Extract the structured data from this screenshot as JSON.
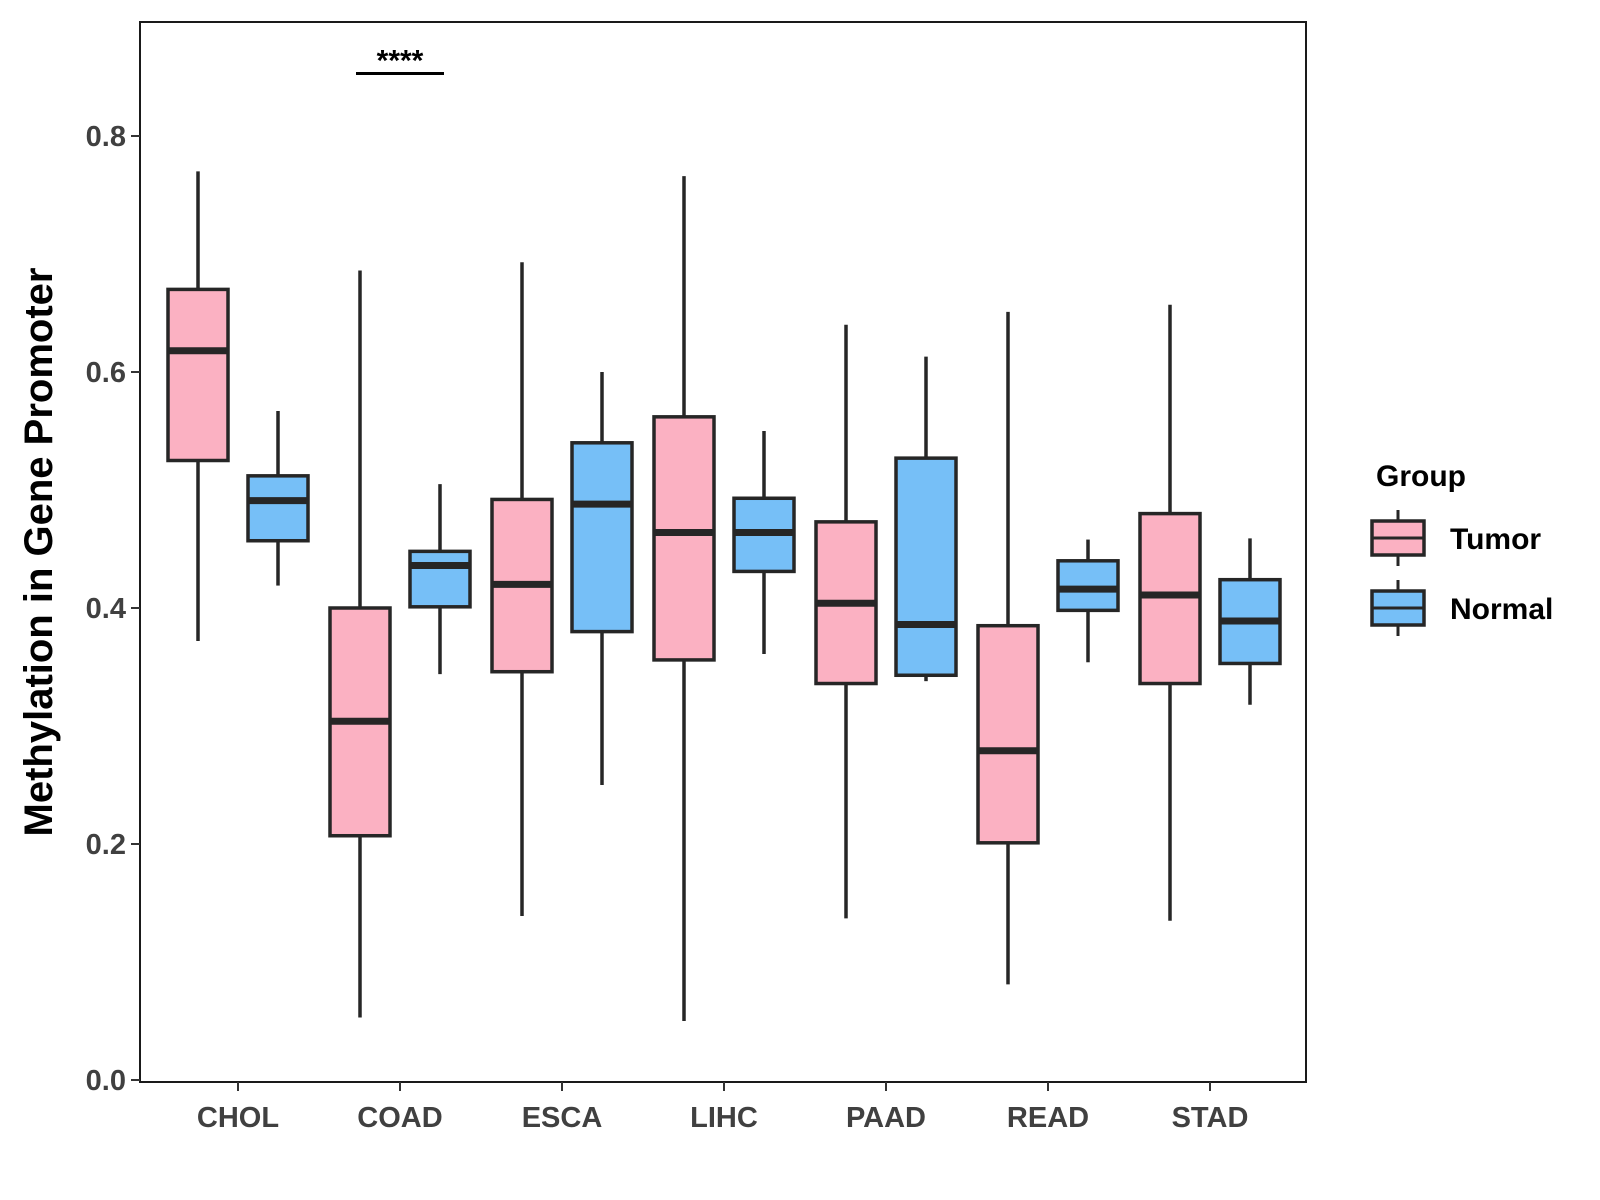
{
  "chart_data": {
    "type": "boxplot",
    "title": "",
    "xlabel": "",
    "ylabel": "Methylation in Gene Promoter",
    "ylim": [
      0,
      0.89
    ],
    "yticks": [
      0.0,
      0.2,
      0.4,
      0.6,
      0.8
    ],
    "ytick_labels": [
      "0.0",
      "0.2",
      "0.4",
      "0.6",
      "0.8"
    ],
    "categories": [
      "CHOL",
      "COAD",
      "ESCA",
      "LIHC",
      "PAAD",
      "READ",
      "STAD"
    ],
    "legend": {
      "title": "Group",
      "position": "right",
      "entries": [
        {
          "label": "Tumor",
          "color": "#FBB1C2"
        },
        {
          "label": "Normal",
          "color": "#76BFF7"
        }
      ]
    },
    "series": [
      {
        "name": "Tumor",
        "color": "#FBB1C2",
        "boxes": [
          {
            "category": "CHOL",
            "min": 0.372,
            "q1": 0.525,
            "median": 0.618,
            "q3": 0.67,
            "max": 0.77
          },
          {
            "category": "COAD",
            "min": 0.053,
            "q1": 0.207,
            "median": 0.304,
            "q3": 0.4,
            "max": 0.686
          },
          {
            "category": "ESCA",
            "min": 0.139,
            "q1": 0.346,
            "median": 0.42,
            "q3": 0.492,
            "max": 0.693
          },
          {
            "category": "LIHC",
            "min": 0.05,
            "q1": 0.356,
            "median": 0.464,
            "q3": 0.562,
            "max": 0.766
          },
          {
            "category": "PAAD",
            "min": 0.137,
            "q1": 0.336,
            "median": 0.404,
            "q3": 0.473,
            "max": 0.64
          },
          {
            "category": "READ",
            "min": 0.081,
            "q1": 0.201,
            "median": 0.279,
            "q3": 0.385,
            "max": 0.651
          },
          {
            "category": "STAD",
            "min": 0.135,
            "q1": 0.336,
            "median": 0.411,
            "q3": 0.48,
            "max": 0.657
          }
        ]
      },
      {
        "name": "Normal",
        "color": "#76BFF7",
        "boxes": [
          {
            "category": "CHOL",
            "min": 0.419,
            "q1": 0.457,
            "median": 0.491,
            "q3": 0.512,
            "max": 0.567
          },
          {
            "category": "COAD",
            "min": 0.344,
            "q1": 0.401,
            "median": 0.436,
            "q3": 0.448,
            "max": 0.505
          },
          {
            "category": "ESCA",
            "min": 0.25,
            "q1": 0.38,
            "median": 0.488,
            "q3": 0.54,
            "max": 0.6
          },
          {
            "category": "LIHC",
            "min": 0.361,
            "q1": 0.431,
            "median": 0.464,
            "q3": 0.493,
            "max": 0.55
          },
          {
            "category": "PAAD",
            "min": 0.338,
            "q1": 0.343,
            "median": 0.386,
            "q3": 0.527,
            "max": 0.613
          },
          {
            "category": "READ",
            "min": 0.354,
            "q1": 0.398,
            "median": 0.416,
            "q3": 0.44,
            "max": 0.458
          },
          {
            "category": "STAD",
            "min": 0.318,
            "q1": 0.353,
            "median": 0.389,
            "q3": 0.424,
            "max": 0.459
          }
        ]
      }
    ],
    "annotations": [
      {
        "category": "COAD",
        "text": "****",
        "y": 0.853
      }
    ]
  }
}
